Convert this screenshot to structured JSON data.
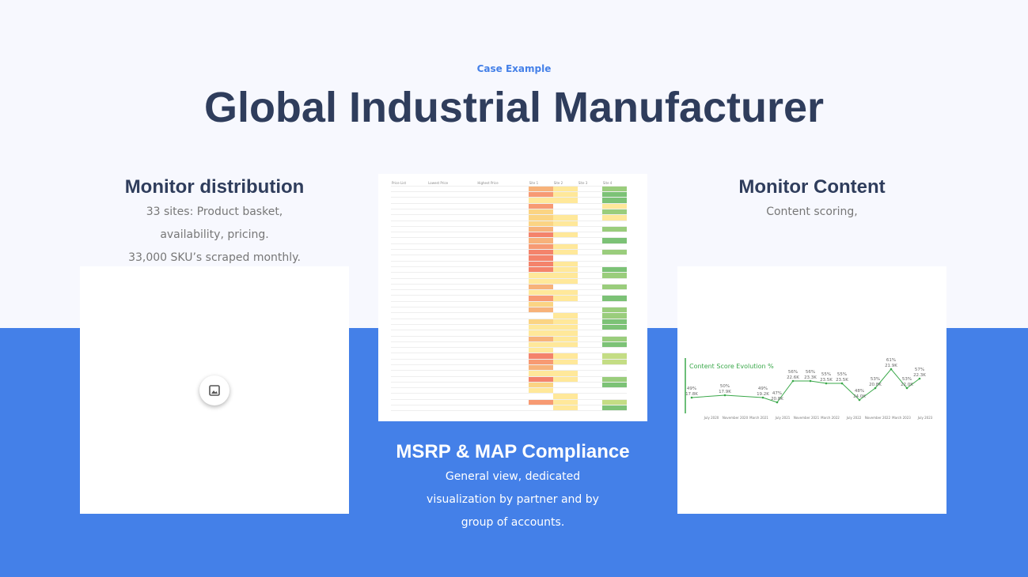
{
  "header": {
    "eyebrow": "Case Example",
    "title": "Global Industrial Manufacturer"
  },
  "left": {
    "title": "Monitor distribution",
    "lines": [
      "33 sites: Product basket,",
      "availability, pricing.",
      "33,000 SKU’s scraped monthly."
    ]
  },
  "center": {
    "title": "MSRP & MAP Compliance",
    "lines": [
      "General view, dedicated",
      "visualization by partner and by",
      "group of accounts."
    ],
    "table_headers": [
      "Price List",
      "Lowest Price",
      "Highest Price",
      "Site 1",
      "Site 2",
      "Site 3",
      "Site 4"
    ]
  },
  "right": {
    "title": "Monitor Content",
    "lines": [
      "Content scoring,"
    ],
    "chart_data": {
      "type": "line",
      "title": "Content Score Evolution %",
      "x_labels": [
        "July 2020",
        "November 2020",
        "March 2021",
        "July 2021",
        "November 2021",
        "March 2022",
        "July 2022",
        "November 2022",
        "March 2023",
        "July 2023"
      ],
      "points": [
        {
          "pct": "49%",
          "count": "17.8K",
          "v": 49
        },
        {
          "pct": "50%",
          "count": "17.9K",
          "v": 50
        },
        {
          "pct": "49%",
          "count": "19.2K",
          "v": 49
        },
        {
          "pct": "47%",
          "count": "20.8K",
          "v": 47
        },
        {
          "pct": "56%",
          "count": "22.6K",
          "v": 56
        },
        {
          "pct": "56%",
          "count": "23.3K",
          "v": 56
        },
        {
          "pct": "55%",
          "count": "23.5K",
          "v": 55
        },
        {
          "pct": "55%",
          "count": "23.5K",
          "v": 55
        },
        {
          "pct": "48%",
          "count": "24.0K",
          "v": 48
        },
        {
          "pct": "53%",
          "count": "20.8K",
          "v": 53
        },
        {
          "pct": "61%",
          "count": "21.9K",
          "v": 61
        },
        {
          "pct": "53%",
          "count": "22.0K",
          "v": 53
        },
        {
          "pct": "57%",
          "count": "22.3K",
          "v": 57
        }
      ]
    }
  },
  "colors": {
    "accent": "#4480e8",
    "heading": "#2f3d5c",
    "line": "#3aa84a"
  }
}
